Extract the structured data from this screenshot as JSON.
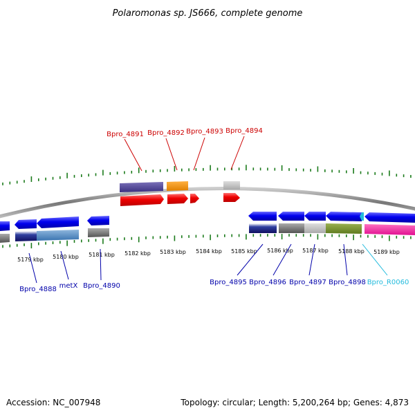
{
  "title": "Polaromonas sp. JS666, complete genome",
  "footer": {
    "accession": "Accession: NC_007948",
    "summary": "Topology: circular; Length: 5,200,264 bp; Genes: 4,873"
  },
  "colors": {
    "tick": "#1a7a1a",
    "backbone": "#888888",
    "label_top": "#cc0000",
    "label_bottom": "#0000aa",
    "label_rna": "#22bbdd"
  },
  "kbp_labels": [
    "5179 kbp",
    "5180 kbp",
    "5181 kbp",
    "5182 kbp",
    "5183 kbp",
    "5184 kbp",
    "5185 kbp",
    "5186 kbp",
    "5187 kbp",
    "5188 kbp",
    "5189 kbp"
  ],
  "top_labels": [
    {
      "text": "Bpro_4891",
      "color": "#cc0000"
    },
    {
      "text": "Bpro_4892",
      "color": "#cc0000"
    },
    {
      "text": "Bpro_4893",
      "color": "#cc0000"
    },
    {
      "text": "Bpro_4894",
      "color": "#cc0000"
    }
  ],
  "bottom_labels": [
    {
      "text": "Bpro_4888",
      "color": "#0000aa"
    },
    {
      "text": "metX",
      "color": "#0000aa"
    },
    {
      "text": "Bpro_4890",
      "color": "#0000aa"
    },
    {
      "text": "Bpro_4895",
      "color": "#0000aa"
    },
    {
      "text": "Bpro_4896",
      "color": "#0000aa"
    },
    {
      "text": "Bpro_4897",
      "color": "#0000aa"
    },
    {
      "text": "Bpro_4898",
      "color": "#0000aa"
    },
    {
      "text": "Bpro_R0060",
      "color": "#22bbdd"
    }
  ]
}
